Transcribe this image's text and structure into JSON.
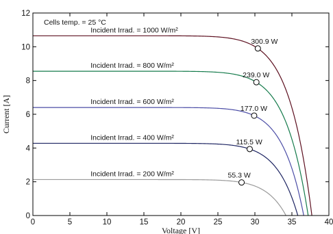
{
  "chart_data": {
    "type": "line",
    "title": "",
    "xlabel": "Voltage [V]",
    "ylabel": "Current [A]",
    "xlim": [
      0,
      40
    ],
    "ylim": [
      0,
      12
    ],
    "x_ticks": [
      0,
      5,
      10,
      15,
      20,
      25,
      30,
      35,
      40
    ],
    "y_ticks": [
      0,
      2,
      4,
      6,
      8,
      10,
      12
    ],
    "grid": false,
    "annotation": "Cells temp. = 25 °C",
    "series": [
      {
        "name": "Incident Irrad. = 1000 W/m²",
        "color": "#5c0f1f",
        "isc": 10.65,
        "voc": 37.7,
        "mpp": {
          "voltage": 30.4,
          "current": 9.9,
          "power_label": "300.9 W"
        }
      },
      {
        "name": "Incident Irrad. = 800 W/m²",
        "color": "#137a4a",
        "isc": 8.55,
        "voc": 37.2,
        "mpp": {
          "voltage": 30.2,
          "current": 7.9,
          "power_label": "239.0 W"
        }
      },
      {
        "name": "Incident Irrad. = 600 W/m²",
        "color": "#4b4da6",
        "isc": 6.4,
        "voc": 36.6,
        "mpp": {
          "voltage": 29.9,
          "current": 5.92,
          "power_label": "177.0 W"
        }
      },
      {
        "name": "Incident Irrad. = 400 W/m²",
        "color": "#1c2361",
        "isc": 4.28,
        "voc": 35.8,
        "mpp": {
          "voltage": 29.3,
          "current": 3.94,
          "power_label": "115.5 W"
        }
      },
      {
        "name": "Incident Irrad. = 200 W/m²",
        "color": "#9a9a9a",
        "isc": 2.13,
        "voc": 34.2,
        "mpp": {
          "voltage": 28.2,
          "current": 1.96,
          "power_label": "55.3 W"
        }
      }
    ]
  }
}
